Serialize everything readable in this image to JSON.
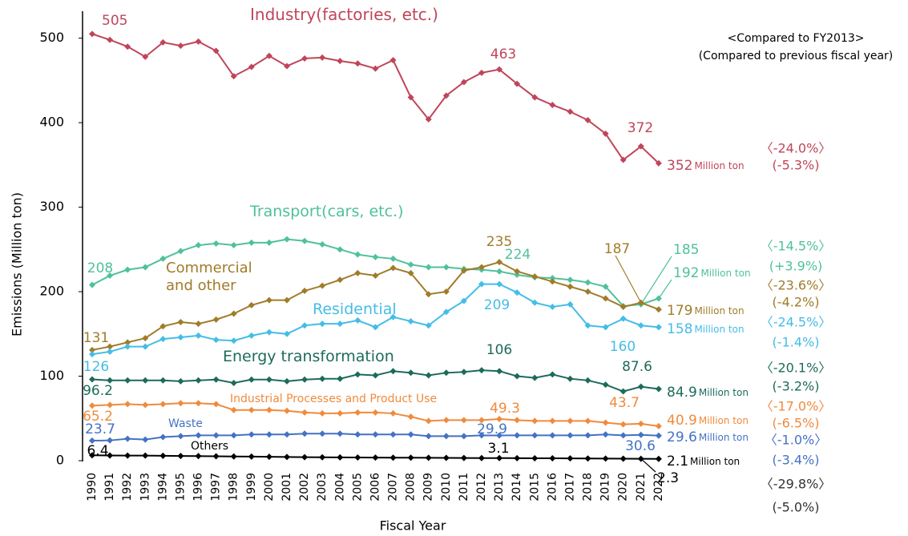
{
  "chart_data": {
    "type": "line",
    "y_label": "Emissions (Million ton)",
    "x_label": "Fiscal Year",
    "unit": "Million ton",
    "comparison_header": [
      "<Compared to FY2013>",
      "(Compared to previous fiscal year)"
    ],
    "categories": [
      "1990",
      "1991",
      "1992",
      "1993",
      "1994",
      "1995",
      "1996",
      "1997",
      "1998",
      "1999",
      "2000",
      "2001",
      "2002",
      "2003",
      "2004",
      "2005",
      "2006",
      "2007",
      "2008",
      "2009",
      "2010",
      "2011",
      "2012",
      "2013",
      "2014",
      "2015",
      "2016",
      "2017",
      "2018",
      "2019",
      "2020",
      "2021",
      "2022"
    ],
    "ylim": [
      0,
      530
    ],
    "yticks": [
      0,
      100,
      200,
      300,
      400,
      500
    ],
    "series": [
      {
        "name": "Industry(factories, etc.)",
        "color": "#c0455a",
        "values": [
          505,
          498,
          490,
          478,
          495,
          491,
          496,
          485,
          455,
          466,
          479,
          467,
          476,
          477,
          473,
          470,
          464,
          474,
          430,
          404,
          432,
          448,
          459,
          463,
          446,
          430,
          421,
          413,
          403,
          387,
          356,
          372,
          352
        ],
        "value_labels": [
          "505",
          null,
          null,
          null,
          null,
          null,
          null,
          null,
          null,
          null,
          null,
          null,
          null,
          null,
          null,
          null,
          null,
          null,
          null,
          null,
          null,
          null,
          null,
          "463",
          null,
          null,
          null,
          null,
          null,
          null,
          null,
          "372",
          "352"
        ],
        "change_fy2013": "〈-24.0%〉",
        "change_prev": "(-5.3%)"
      },
      {
        "name": "Transport(cars, etc.)",
        "color": "#4fc19b",
        "values": [
          208,
          219,
          226,
          229,
          239,
          248,
          255,
          257,
          255,
          258,
          258,
          262,
          260,
          256,
          250,
          244,
          241,
          239,
          232,
          229,
          229,
          227,
          226,
          224,
          220,
          217,
          216,
          214,
          211,
          206,
          183,
          185,
          192
        ],
        "value_labels": [
          "208",
          null,
          null,
          null,
          null,
          null,
          null,
          null,
          null,
          null,
          null,
          null,
          null,
          null,
          null,
          null,
          null,
          null,
          null,
          null,
          null,
          null,
          null,
          "224",
          null,
          null,
          null,
          null,
          null,
          null,
          null,
          "185",
          "192"
        ],
        "change_fy2013": "〈-14.5%〉",
        "change_prev": "(+3.9%)"
      },
      {
        "name": "Commercial and other",
        "color": "#a07c2a",
        "values": [
          131,
          135,
          140,
          145,
          159,
          164,
          162,
          167,
          174,
          184,
          190,
          190,
          201,
          207,
          214,
          222,
          219,
          228,
          222,
          197,
          200,
          225,
          229,
          235,
          224,
          218,
          212,
          206,
          200,
          192,
          182,
          187,
          179
        ],
        "value_labels": [
          "131",
          null,
          null,
          null,
          null,
          null,
          null,
          null,
          null,
          null,
          null,
          null,
          null,
          null,
          null,
          null,
          null,
          null,
          null,
          null,
          null,
          null,
          null,
          "235",
          null,
          null,
          null,
          null,
          null,
          null,
          null,
          "187",
          "179"
        ],
        "change_fy2013": "〈-23.6%〉",
        "change_prev": "(-4.2%)"
      },
      {
        "name": "Residential",
        "color": "#45bde6",
        "values": [
          126,
          129,
          135,
          135,
          144,
          146,
          148,
          143,
          142,
          148,
          152,
          150,
          160,
          162,
          162,
          166,
          158,
          170,
          165,
          160,
          176,
          189,
          209,
          209,
          199,
          187,
          182,
          185,
          160,
          158,
          168,
          160,
          158
        ],
        "value_labels": [
          "126",
          null,
          null,
          null,
          null,
          null,
          null,
          null,
          null,
          null,
          null,
          null,
          null,
          null,
          null,
          null,
          null,
          null,
          null,
          null,
          null,
          null,
          null,
          "209",
          null,
          null,
          null,
          null,
          null,
          null,
          null,
          "160",
          "158"
        ],
        "change_fy2013": "〈-24.5%〉",
        "change_prev": "(-1.4%)"
      },
      {
        "name": "Energy transformation",
        "color": "#1d6b5a",
        "values": [
          96.2,
          95,
          95,
          95,
          95,
          94,
          95,
          96,
          92,
          96,
          96,
          94,
          96,
          97,
          97,
          102,
          101,
          106,
          104,
          101,
          104,
          105,
          107,
          106,
          100,
          98,
          102,
          97,
          95,
          90,
          82,
          87.6,
          84.9
        ],
        "value_labels": [
          "96.2",
          null,
          null,
          null,
          null,
          null,
          null,
          null,
          null,
          null,
          null,
          null,
          null,
          null,
          null,
          null,
          null,
          null,
          null,
          null,
          null,
          null,
          null,
          "106",
          null,
          null,
          null,
          null,
          null,
          null,
          null,
          "87.6",
          "84.9"
        ],
        "change_fy2013": "〈-20.1%〉",
        "change_prev": "(-3.2%)"
      },
      {
        "name": "Industrial Processes and Product Use",
        "color": "#f08a3c",
        "values": [
          65.2,
          66,
          67,
          66,
          67,
          68,
          68,
          67,
          60,
          60,
          60,
          59,
          57,
          56,
          56,
          57,
          57,
          56,
          52,
          47,
          48,
          48,
          48,
          49.3,
          48,
          47,
          47,
          47,
          47,
          45,
          43,
          43.7,
          40.9
        ],
        "value_labels": [
          "65.2",
          null,
          null,
          null,
          null,
          null,
          null,
          null,
          null,
          null,
          null,
          null,
          null,
          null,
          null,
          null,
          null,
          null,
          null,
          null,
          null,
          null,
          null,
          "49.3",
          null,
          null,
          null,
          null,
          null,
          null,
          null,
          "43.7",
          "40.9"
        ],
        "change_fy2013": "〈-17.0%〉",
        "change_prev": "(-6.5%)"
      },
      {
        "name": "Waste",
        "color": "#4472c4",
        "values": [
          23.7,
          24,
          26,
          25,
          28,
          29,
          30,
          30,
          30,
          31,
          31,
          31,
          32,
          32,
          32,
          31,
          31,
          31,
          31,
          29,
          29,
          29,
          30,
          29.9,
          30,
          30,
          30,
          30,
          30,
          31,
          30,
          30.6,
          29.6
        ],
        "value_labels": [
          "23.7",
          null,
          null,
          null,
          null,
          null,
          null,
          null,
          null,
          null,
          null,
          null,
          null,
          null,
          null,
          null,
          null,
          null,
          null,
          null,
          null,
          null,
          null,
          "29.9",
          null,
          null,
          null,
          null,
          null,
          null,
          null,
          "30.6",
          "29.6"
        ],
        "change_fy2013": "〈-1.0%〉",
        "change_prev": "(-3.4%)"
      },
      {
        "name": "Others",
        "color": "#000000",
        "values": [
          6.4,
          6.2,
          6,
          6,
          5.8,
          5.6,
          5.4,
          5.2,
          5,
          4.8,
          4.6,
          4.4,
          4.2,
          4,
          3.9,
          3.8,
          3.7,
          3.6,
          3.5,
          3.4,
          3.3,
          3.2,
          3.1,
          3.1,
          3,
          2.9,
          2.8,
          2.7,
          2.6,
          2.5,
          2.4,
          2.3,
          2.1
        ],
        "value_labels": [
          "6.4",
          null,
          null,
          null,
          null,
          null,
          null,
          null,
          null,
          null,
          null,
          null,
          null,
          null,
          null,
          null,
          null,
          null,
          null,
          null,
          null,
          null,
          null,
          "3.1",
          null,
          null,
          null,
          null,
          null,
          null,
          null,
          "2.3",
          "2.1"
        ],
        "change_fy2013": "〈-29.8%〉",
        "change_prev": "(-5.0%)"
      }
    ]
  }
}
